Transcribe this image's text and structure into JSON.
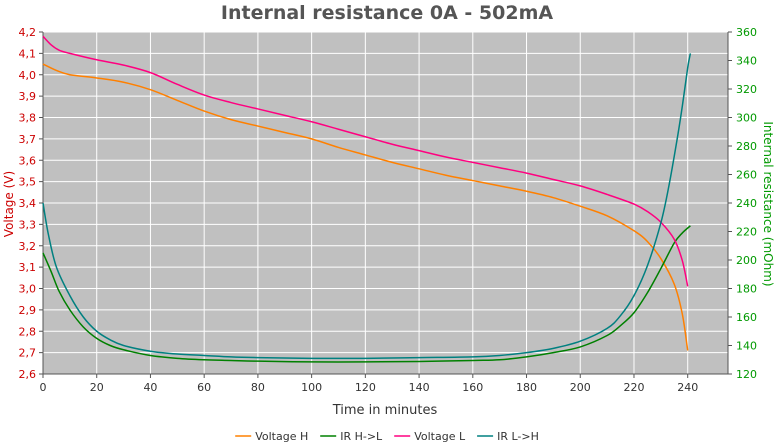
{
  "chart_data": {
    "type": "line",
    "title": "Internal resistance  0A - 502mA",
    "xlabel": "Time in minutes",
    "ylabel": "Voltage (V)",
    "y2label": "Internal resistance (mOhm)",
    "xlim": [
      0,
      255
    ],
    "ylim": [
      2.6,
      4.2
    ],
    "y2lim": [
      120,
      360
    ],
    "x_ticks": [
      0,
      20,
      40,
      60,
      80,
      100,
      120,
      140,
      160,
      180,
      200,
      220,
      240
    ],
    "y_ticks": [
      "2,6",
      "2,7",
      "2,8",
      "2,9",
      "3,0",
      "3,1",
      "3,2",
      "3,3",
      "3,4",
      "3,5",
      "3,6",
      "3,7",
      "3,8",
      "3,9",
      "4,0",
      "4,1",
      "4,2"
    ],
    "y2_ticks": [
      120,
      140,
      160,
      180,
      200,
      220,
      240,
      260,
      280,
      300,
      320,
      340,
      360
    ],
    "grid": true,
    "legend_position": "bottom",
    "series": [
      {
        "name": "Voltage H",
        "axis": "left",
        "color": "#ff8000",
        "points": [
          [
            0,
            4.05
          ],
          [
            5,
            4.02
          ],
          [
            10,
            4.0
          ],
          [
            20,
            3.985
          ],
          [
            30,
            3.965
          ],
          [
            40,
            3.93
          ],
          [
            50,
            3.88
          ],
          [
            60,
            3.83
          ],
          [
            70,
            3.79
          ],
          [
            80,
            3.76
          ],
          [
            90,
            3.73
          ],
          [
            100,
            3.7
          ],
          [
            110,
            3.66
          ],
          [
            120,
            3.625
          ],
          [
            130,
            3.59
          ],
          [
            140,
            3.56
          ],
          [
            150,
            3.53
          ],
          [
            160,
            3.505
          ],
          [
            170,
            3.48
          ],
          [
            180,
            3.455
          ],
          [
            190,
            3.425
          ],
          [
            200,
            3.385
          ],
          [
            210,
            3.34
          ],
          [
            220,
            3.27
          ],
          [
            225,
            3.22
          ],
          [
            230,
            3.14
          ],
          [
            235,
            3.02
          ],
          [
            238,
            2.88
          ],
          [
            240,
            2.71
          ]
        ]
      },
      {
        "name": "IR H->L",
        "axis": "right",
        "color": "#008000",
        "points": [
          [
            0,
            205
          ],
          [
            3,
            192
          ],
          [
            6,
            178
          ],
          [
            10,
            165
          ],
          [
            15,
            153
          ],
          [
            20,
            145
          ],
          [
            25,
            140
          ],
          [
            30,
            137
          ],
          [
            40,
            133
          ],
          [
            50,
            131
          ],
          [
            60,
            130
          ],
          [
            70,
            129.5
          ],
          [
            80,
            129
          ],
          [
            100,
            128.5
          ],
          [
            120,
            128.5
          ],
          [
            140,
            128.8
          ],
          [
            160,
            129.5
          ],
          [
            170,
            130
          ],
          [
            180,
            132
          ],
          [
            190,
            135
          ],
          [
            200,
            139
          ],
          [
            210,
            147
          ],
          [
            215,
            154
          ],
          [
            220,
            163
          ],
          [
            225,
            177
          ],
          [
            230,
            194
          ],
          [
            235,
            212
          ],
          [
            238,
            219
          ],
          [
            241,
            224
          ]
        ]
      },
      {
        "name": "Voltage L",
        "axis": "left",
        "color": "#ff0080",
        "points": [
          [
            0,
            4.18
          ],
          [
            3,
            4.14
          ],
          [
            6,
            4.115
          ],
          [
            10,
            4.1
          ],
          [
            20,
            4.07
          ],
          [
            30,
            4.045
          ],
          [
            40,
            4.01
          ],
          [
            50,
            3.955
          ],
          [
            60,
            3.905
          ],
          [
            70,
            3.87
          ],
          [
            80,
            3.84
          ],
          [
            90,
            3.81
          ],
          [
            100,
            3.78
          ],
          [
            110,
            3.745
          ],
          [
            120,
            3.71
          ],
          [
            130,
            3.675
          ],
          [
            140,
            3.645
          ],
          [
            150,
            3.615
          ],
          [
            160,
            3.59
          ],
          [
            170,
            3.565
          ],
          [
            180,
            3.54
          ],
          [
            190,
            3.51
          ],
          [
            200,
            3.48
          ],
          [
            210,
            3.44
          ],
          [
            220,
            3.395
          ],
          [
            225,
            3.36
          ],
          [
            230,
            3.31
          ],
          [
            235,
            3.23
          ],
          [
            238,
            3.13
          ],
          [
            240,
            3.01
          ]
        ]
      },
      {
        "name": "IR L->H",
        "axis": "right",
        "color": "#008080",
        "points": [
          [
            0,
            240
          ],
          [
            2,
            218
          ],
          [
            5,
            195
          ],
          [
            10,
            175
          ],
          [
            15,
            160
          ],
          [
            20,
            150
          ],
          [
            25,
            144
          ],
          [
            30,
            140
          ],
          [
            40,
            136
          ],
          [
            50,
            134
          ],
          [
            60,
            133
          ],
          [
            70,
            132
          ],
          [
            80,
            131.5
          ],
          [
            100,
            131
          ],
          [
            120,
            131
          ],
          [
            140,
            131.5
          ],
          [
            160,
            132
          ],
          [
            170,
            133
          ],
          [
            180,
            135
          ],
          [
            190,
            138
          ],
          [
            200,
            143
          ],
          [
            210,
            152
          ],
          [
            215,
            161
          ],
          [
            220,
            175
          ],
          [
            225,
            196
          ],
          [
            230,
            226
          ],
          [
            233,
            252
          ],
          [
            236,
            284
          ],
          [
            238,
            308
          ],
          [
            240,
            335
          ],
          [
            241,
            345
          ]
        ]
      }
    ]
  }
}
